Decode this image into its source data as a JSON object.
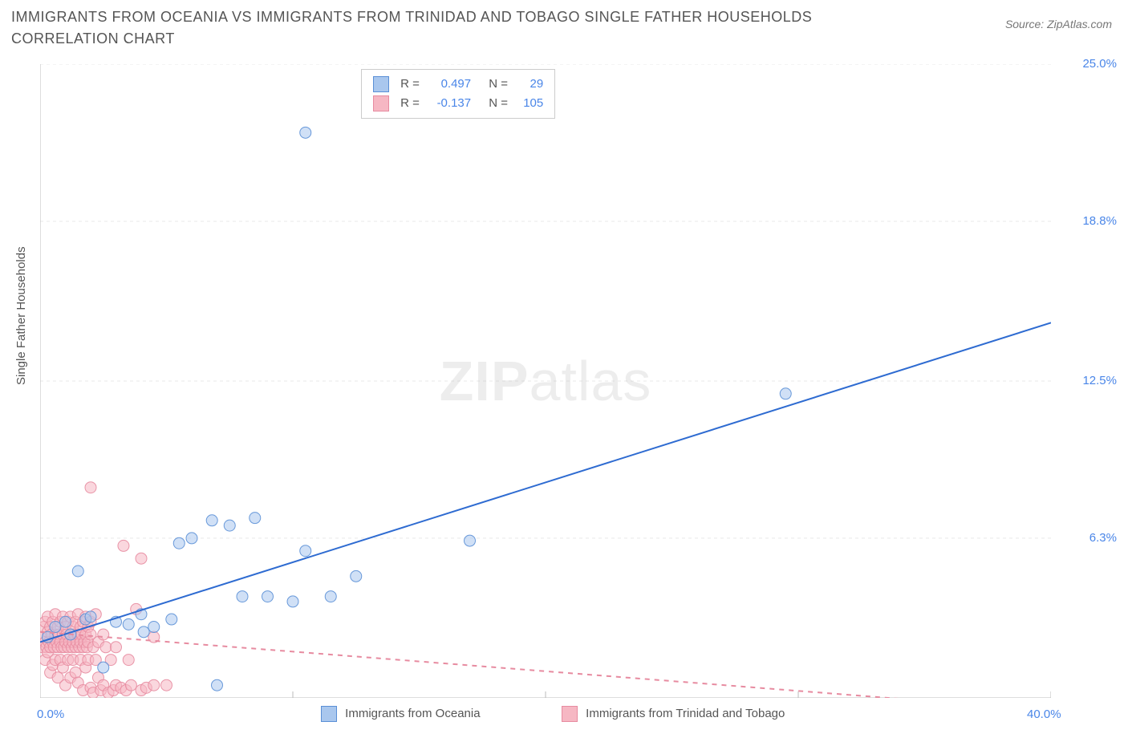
{
  "title": "IMMIGRANTS FROM OCEANIA VS IMMIGRANTS FROM TRINIDAD AND TOBAGO SINGLE FATHER HOUSEHOLDS CORRELATION CHART",
  "source": "Source: ZipAtlas.com",
  "y_axis_label": "Single Father Households",
  "watermark_bold": "ZIP",
  "watermark_rest": "atlas",
  "chart": {
    "type": "scatter",
    "xlim": [
      0,
      40
    ],
    "ylim": [
      0,
      25
    ],
    "x_start_label": "0.0%",
    "x_end_label": "40.0%",
    "y_ticks": [
      6.3,
      12.5,
      18.8,
      25.0
    ],
    "y_tick_labels": [
      "6.3%",
      "12.5%",
      "18.8%",
      "25.0%"
    ],
    "x_ticks_minor": [
      10,
      20,
      30,
      40
    ],
    "grid_color": "#e9e9e9",
    "axis_color": "#bbbbbb",
    "background_color": "#ffffff",
    "marker_radius": 7,
    "marker_opacity": 0.55,
    "marker_stroke_opacity": 0.9,
    "line_width": 2
  },
  "series": [
    {
      "key": "oceania",
      "label": "Immigrants from Oceania",
      "color_fill": "#a9c7ee",
      "color_stroke": "#5a8fd6",
      "line_color": "#2e6bd1",
      "R_label": "R =",
      "R_value": "0.497",
      "N_label": "N =",
      "N_value": "29",
      "regression": {
        "x1": 0,
        "y1": 2.2,
        "x2": 40,
        "y2": 14.8,
        "dash": "none"
      },
      "points": [
        [
          0.3,
          2.4
        ],
        [
          0.6,
          2.8
        ],
        [
          1.0,
          3.0
        ],
        [
          1.2,
          2.5
        ],
        [
          1.5,
          5.0
        ],
        [
          1.8,
          3.1
        ],
        [
          2.0,
          3.2
        ],
        [
          2.5,
          1.2
        ],
        [
          3.0,
          3.0
        ],
        [
          3.5,
          2.9
        ],
        [
          4.0,
          3.3
        ],
        [
          4.1,
          2.6
        ],
        [
          4.5,
          2.8
        ],
        [
          5.2,
          3.1
        ],
        [
          5.5,
          6.1
        ],
        [
          6.0,
          6.3
        ],
        [
          6.8,
          7.0
        ],
        [
          7.0,
          0.5
        ],
        [
          7.5,
          6.8
        ],
        [
          8.0,
          4.0
        ],
        [
          8.5,
          7.1
        ],
        [
          9.0,
          4.0
        ],
        [
          10.0,
          3.8
        ],
        [
          10.5,
          5.8
        ],
        [
          11.5,
          4.0
        ],
        [
          12.5,
          4.8
        ],
        [
          17.0,
          6.2
        ],
        [
          29.5,
          12.0
        ],
        [
          10.5,
          22.3
        ]
      ]
    },
    {
      "key": "trinidad",
      "label": "Immigrants from Trinidad and Tobago",
      "color_fill": "#f6b7c3",
      "color_stroke": "#e78ba0",
      "line_color": "#e78ba0",
      "R_label": "R =",
      "R_value": "-0.137",
      "N_label": "N =",
      "N_value": "105",
      "regression": {
        "x1": 0,
        "y1": 2.6,
        "x2": 40,
        "y2": -0.5,
        "dash": "6,6"
      },
      "points": [
        [
          0.1,
          2.0
        ],
        [
          0.1,
          2.4
        ],
        [
          0.15,
          2.8
        ],
        [
          0.2,
          1.5
        ],
        [
          0.2,
          2.2
        ],
        [
          0.2,
          3.0
        ],
        [
          0.25,
          2.0
        ],
        [
          0.3,
          1.8
        ],
        [
          0.3,
          2.6
        ],
        [
          0.3,
          3.2
        ],
        [
          0.35,
          2.2
        ],
        [
          0.4,
          1.0
        ],
        [
          0.4,
          2.0
        ],
        [
          0.4,
          2.8
        ],
        [
          0.45,
          2.5
        ],
        [
          0.5,
          1.3
        ],
        [
          0.5,
          2.2
        ],
        [
          0.5,
          3.0
        ],
        [
          0.55,
          2.0
        ],
        [
          0.6,
          1.5
        ],
        [
          0.6,
          2.5
        ],
        [
          0.6,
          3.3
        ],
        [
          0.65,
          2.2
        ],
        [
          0.7,
          0.8
        ],
        [
          0.7,
          2.0
        ],
        [
          0.7,
          2.8
        ],
        [
          0.75,
          2.5
        ],
        [
          0.8,
          1.5
        ],
        [
          0.8,
          2.2
        ],
        [
          0.8,
          3.0
        ],
        [
          0.85,
          2.0
        ],
        [
          0.9,
          1.2
        ],
        [
          0.9,
          2.5
        ],
        [
          0.9,
          3.2
        ],
        [
          0.95,
          2.0
        ],
        [
          1.0,
          0.5
        ],
        [
          1.0,
          2.2
        ],
        [
          1.0,
          2.8
        ],
        [
          1.05,
          2.5
        ],
        [
          1.1,
          1.5
        ],
        [
          1.1,
          2.0
        ],
        [
          1.1,
          3.0
        ],
        [
          1.15,
          2.2
        ],
        [
          1.2,
          0.8
        ],
        [
          1.2,
          2.5
        ],
        [
          1.2,
          3.2
        ],
        [
          1.25,
          2.0
        ],
        [
          1.3,
          1.5
        ],
        [
          1.3,
          2.2
        ],
        [
          1.3,
          2.8
        ],
        [
          1.35,
          2.5
        ],
        [
          1.4,
          1.0
        ],
        [
          1.4,
          2.0
        ],
        [
          1.4,
          3.0
        ],
        [
          1.45,
          2.2
        ],
        [
          1.5,
          0.6
        ],
        [
          1.5,
          2.5
        ],
        [
          1.5,
          3.3
        ],
        [
          1.55,
          2.0
        ],
        [
          1.6,
          1.5
        ],
        [
          1.6,
          2.2
        ],
        [
          1.6,
          2.8
        ],
        [
          1.65,
          2.5
        ],
        [
          1.7,
          0.3
        ],
        [
          1.7,
          2.0
        ],
        [
          1.7,
          3.0
        ],
        [
          1.75,
          2.2
        ],
        [
          1.8,
          1.2
        ],
        [
          1.8,
          2.5
        ],
        [
          1.8,
          3.2
        ],
        [
          1.85,
          2.0
        ],
        [
          1.9,
          1.5
        ],
        [
          1.9,
          2.2
        ],
        [
          1.9,
          2.8
        ],
        [
          2.0,
          0.4
        ],
        [
          2.0,
          2.5
        ],
        [
          2.0,
          3.0
        ],
        [
          2.1,
          0.2
        ],
        [
          2.1,
          2.0
        ],
        [
          2.2,
          1.5
        ],
        [
          2.2,
          3.3
        ],
        [
          2.3,
          0.8
        ],
        [
          2.3,
          2.2
        ],
        [
          2.4,
          0.3
        ],
        [
          2.5,
          2.5
        ],
        [
          2.5,
          0.5
        ],
        [
          2.6,
          2.0
        ],
        [
          2.7,
          0.2
        ],
        [
          2.8,
          1.5
        ],
        [
          2.9,
          0.3
        ],
        [
          3.0,
          0.5
        ],
        [
          3.0,
          2.0
        ],
        [
          3.2,
          0.4
        ],
        [
          3.3,
          6.0
        ],
        [
          3.4,
          0.3
        ],
        [
          3.5,
          1.5
        ],
        [
          3.6,
          0.5
        ],
        [
          3.8,
          3.5
        ],
        [
          4.0,
          0.3
        ],
        [
          4.0,
          5.5
        ],
        [
          4.2,
          0.4
        ],
        [
          4.5,
          0.5
        ],
        [
          4.5,
          2.4
        ],
        [
          2.0,
          8.3
        ],
        [
          5.0,
          0.5
        ]
      ]
    }
  ]
}
